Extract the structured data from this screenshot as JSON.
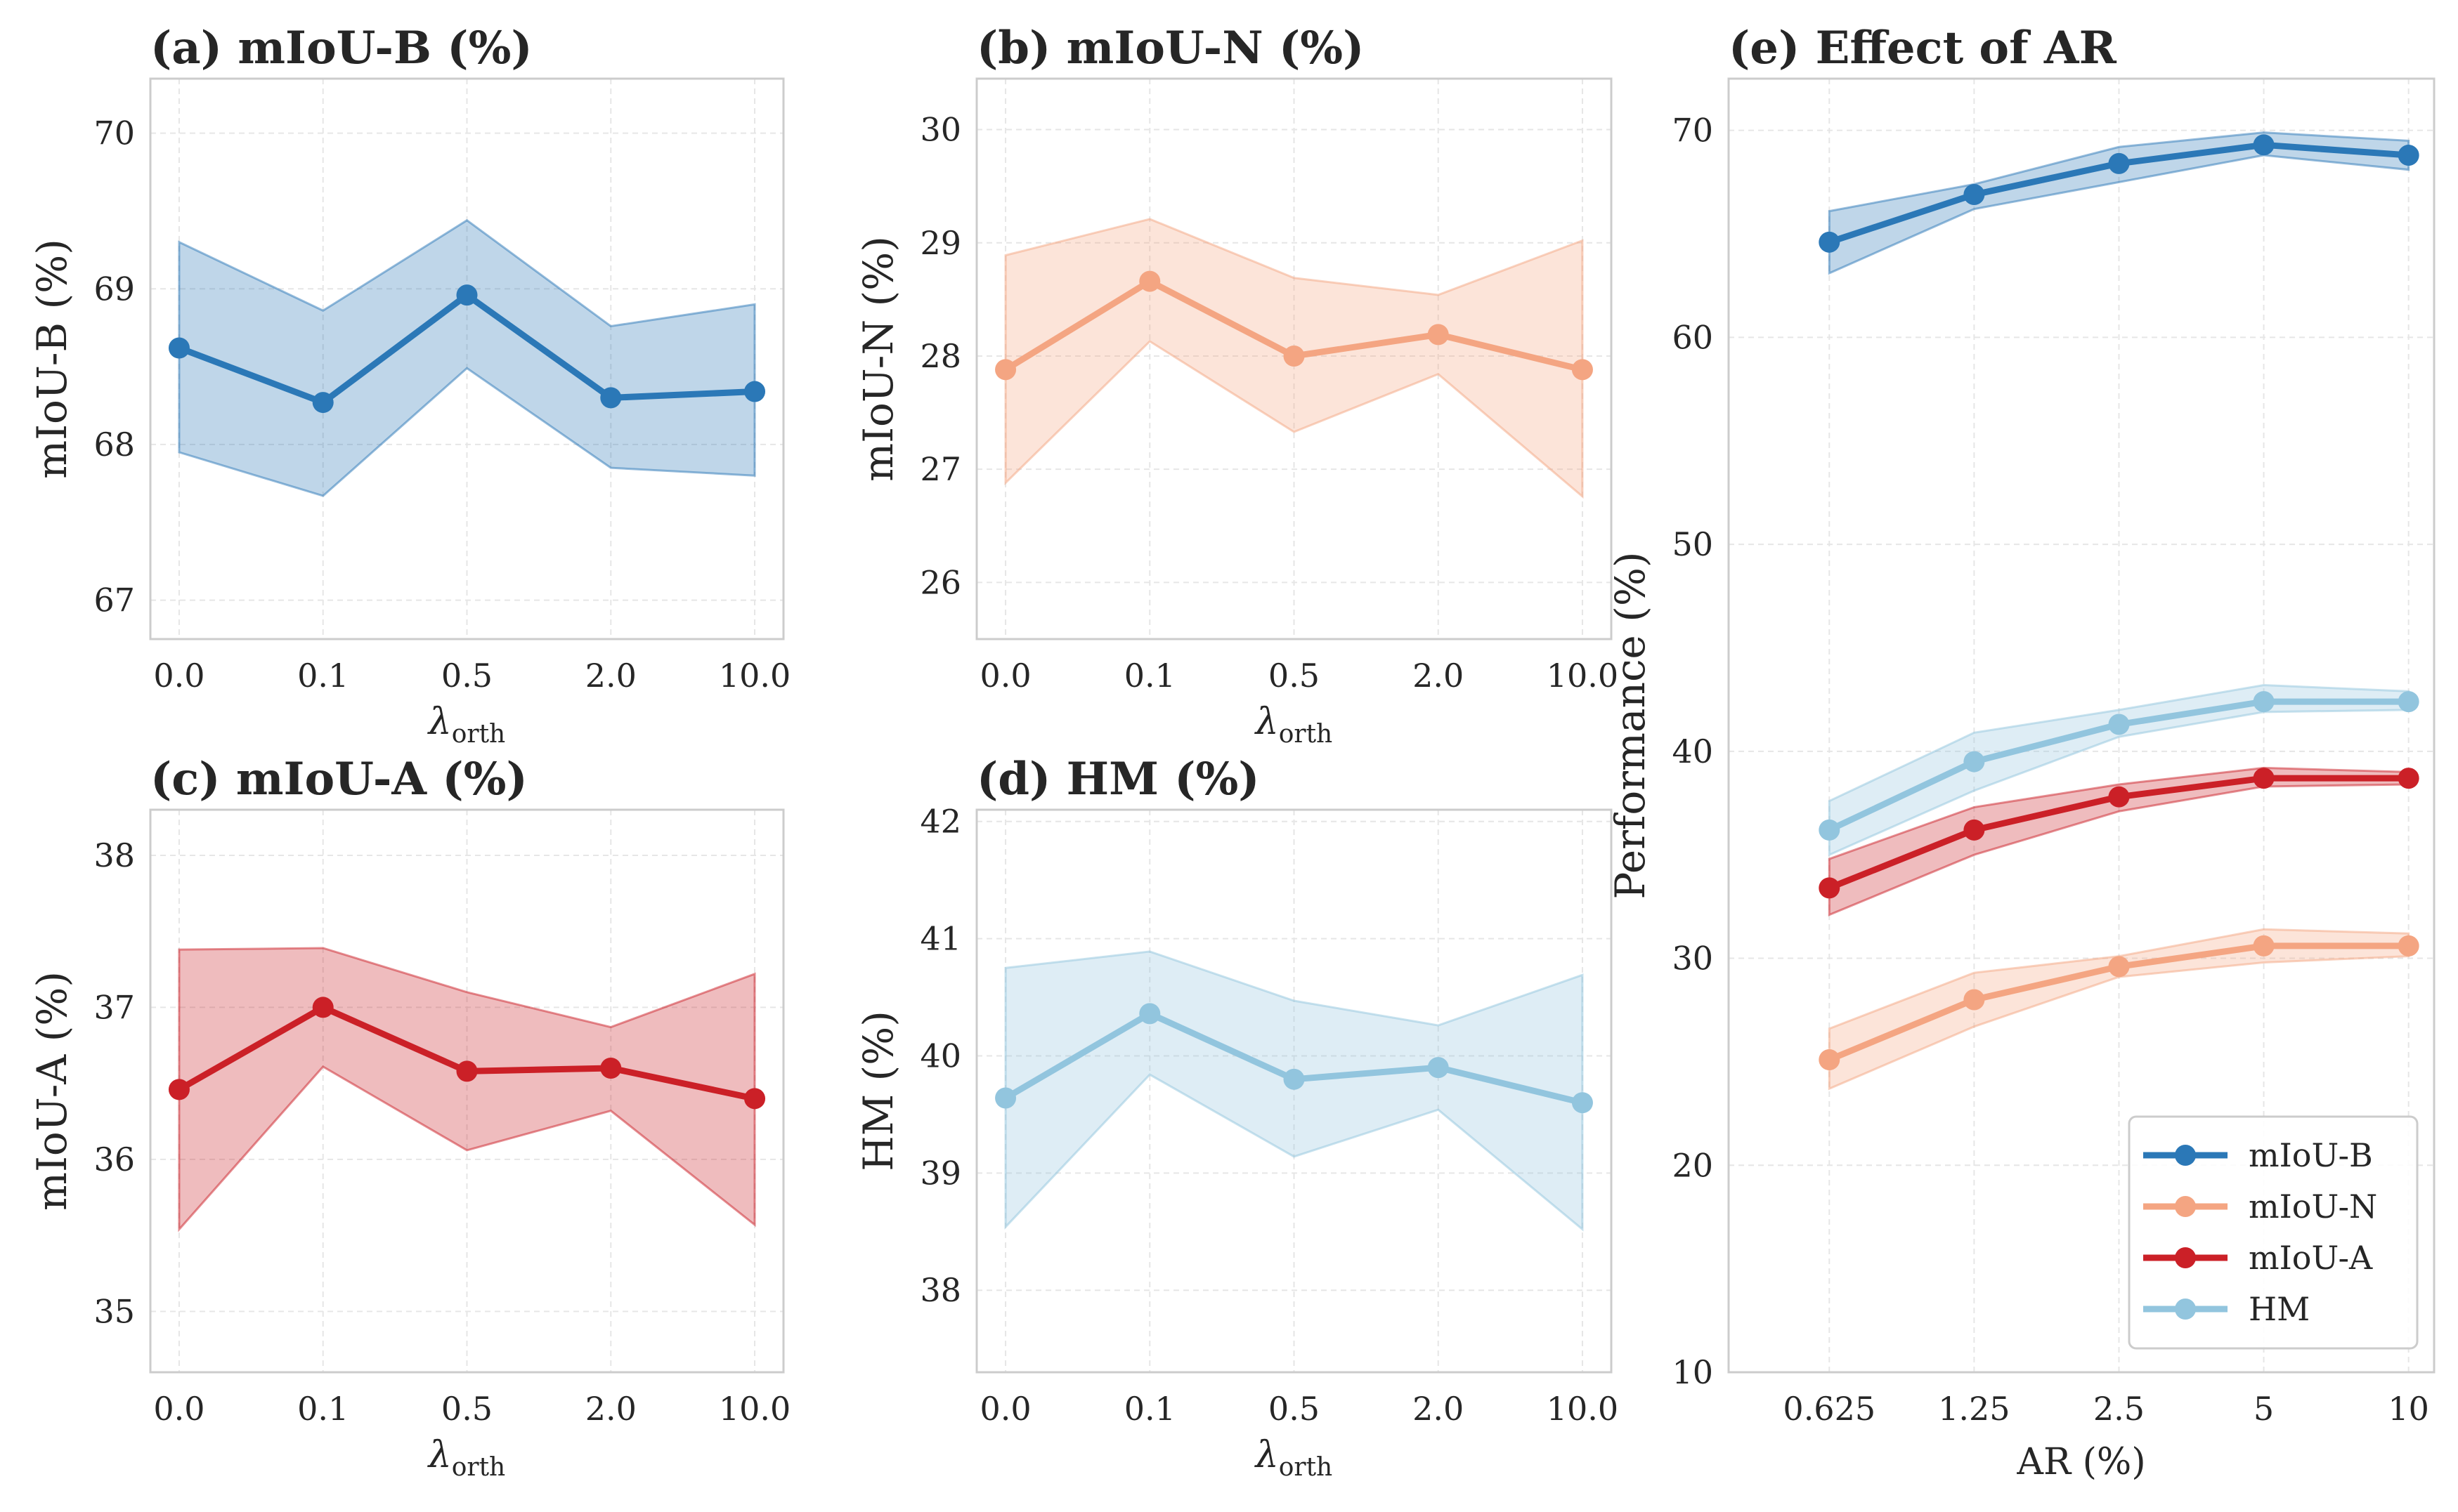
{
  "chart_data": [
    {
      "type": "line",
      "title": "(a) mIoU-B (%)",
      "ylabel": "mIoU-B (%)",
      "xlabel": "λ_orth",
      "xlabel_main": "λ",
      "xlabel_sub": "orth",
      "categories": [
        "0.0",
        "0.1",
        "0.5",
        "2.0",
        "10.0"
      ],
      "ylim": [
        66.75,
        70.35
      ],
      "yticks": [
        67,
        68,
        69,
        70
      ],
      "grid": true,
      "series": [
        {
          "color": "#2b78b7",
          "values": [
            68.62,
            68.27,
            68.96,
            68.3,
            68.34
          ],
          "upper": [
            69.3,
            68.86,
            69.44,
            68.76,
            68.9
          ],
          "lower": [
            67.95,
            67.67,
            68.49,
            67.85,
            67.8
          ]
        }
      ]
    },
    {
      "type": "line",
      "title": "(b) mIoU-N (%)",
      "ylabel": "mIoU-N (%)",
      "xlabel": "λ_orth",
      "xlabel_main": "λ",
      "xlabel_sub": "orth",
      "categories": [
        "0.0",
        "0.1",
        "0.5",
        "2.0",
        "10.0"
      ],
      "ylim": [
        25.5,
        30.45
      ],
      "yticks": [
        26,
        27,
        28,
        29,
        30
      ],
      "grid": true,
      "series": [
        {
          "color": "#f4a582",
          "values": [
            27.88,
            28.66,
            28.0,
            28.19,
            27.88
          ],
          "upper": [
            28.89,
            29.21,
            28.69,
            28.54,
            29.02
          ],
          "lower": [
            26.88,
            28.13,
            27.33,
            27.84,
            26.76
          ]
        }
      ]
    },
    {
      "type": "line",
      "title": "(c) mIoU-A (%)",
      "ylabel": "mIoU-A (%)",
      "xlabel": "λ_orth",
      "xlabel_main": "λ",
      "xlabel_sub": "orth",
      "categories": [
        "0.0",
        "0.1",
        "0.5",
        "2.0",
        "10.0"
      ],
      "ylim": [
        34.6,
        38.3
      ],
      "yticks": [
        35,
        36,
        37,
        38
      ],
      "grid": true,
      "series": [
        {
          "color": "#cb2027",
          "values": [
            36.46,
            37.0,
            36.58,
            36.6,
            36.4
          ],
          "upper": [
            37.38,
            37.39,
            37.1,
            36.87,
            37.22
          ],
          "lower": [
            35.54,
            36.61,
            36.06,
            36.32,
            35.57
          ]
        }
      ]
    },
    {
      "type": "line",
      "title": "(d) HM (%)",
      "ylabel": "HM (%)",
      "xlabel": "λ_orth",
      "xlabel_main": "λ",
      "xlabel_sub": "orth",
      "categories": [
        "0.0",
        "0.1",
        "0.5",
        "2.0",
        "10.0"
      ],
      "ylim": [
        37.3,
        42.1
      ],
      "yticks": [
        38,
        39,
        40,
        41,
        42
      ],
      "grid": true,
      "series": [
        {
          "color": "#92c5de",
          "values": [
            39.64,
            40.36,
            39.8,
            39.9,
            39.6
          ],
          "upper": [
            40.75,
            40.89,
            40.47,
            40.26,
            40.69
          ],
          "lower": [
            38.54,
            39.84,
            39.14,
            39.54,
            38.52
          ]
        }
      ]
    },
    {
      "type": "line",
      "title": "(e) Effect of AR",
      "ylabel": "Performance (%)",
      "xlabel": "AR (%)",
      "xscale": "log2",
      "categories": [
        "0.625",
        "1.25",
        "2.5",
        "5",
        "10"
      ],
      "x": [
        0.625,
        1.25,
        2.5,
        5,
        10
      ],
      "xlim": [
        0.386,
        11.3
      ],
      "ylim": [
        10,
        72.5
      ],
      "yticks": [
        10,
        20,
        30,
        40,
        50,
        60,
        70
      ],
      "grid": true,
      "legend": "lower-right",
      "series": [
        {
          "name": "mIoU-B",
          "color": "#2b78b7",
          "values": [
            64.6,
            66.9,
            68.4,
            69.3,
            68.8
          ],
          "upper": [
            66.1,
            67.4,
            69.2,
            69.9,
            69.5
          ],
          "lower": [
            63.1,
            66.2,
            67.5,
            68.8,
            68.1
          ]
        },
        {
          "name": "mIoU-N",
          "color": "#f4a582",
          "values": [
            25.1,
            28.0,
            29.6,
            30.6,
            30.6
          ],
          "upper": [
            26.6,
            29.3,
            30.1,
            31.4,
            31.2
          ],
          "lower": [
            23.7,
            26.7,
            29.1,
            29.8,
            30.1
          ]
        },
        {
          "name": "mIoU-A",
          "color": "#cb2027",
          "values": [
            33.4,
            36.2,
            37.8,
            38.7,
            38.7
          ],
          "upper": [
            34.8,
            37.3,
            38.4,
            39.2,
            39.0
          ],
          "lower": [
            32.1,
            35.0,
            37.1,
            38.3,
            38.4
          ]
        },
        {
          "name": "HM",
          "color": "#92c5de",
          "values": [
            36.2,
            39.5,
            41.3,
            42.4,
            42.4
          ],
          "upper": [
            37.6,
            40.9,
            42.0,
            43.2,
            42.9
          ],
          "lower": [
            35.0,
            38.1,
            40.7,
            41.9,
            42.0
          ]
        }
      ]
    }
  ]
}
